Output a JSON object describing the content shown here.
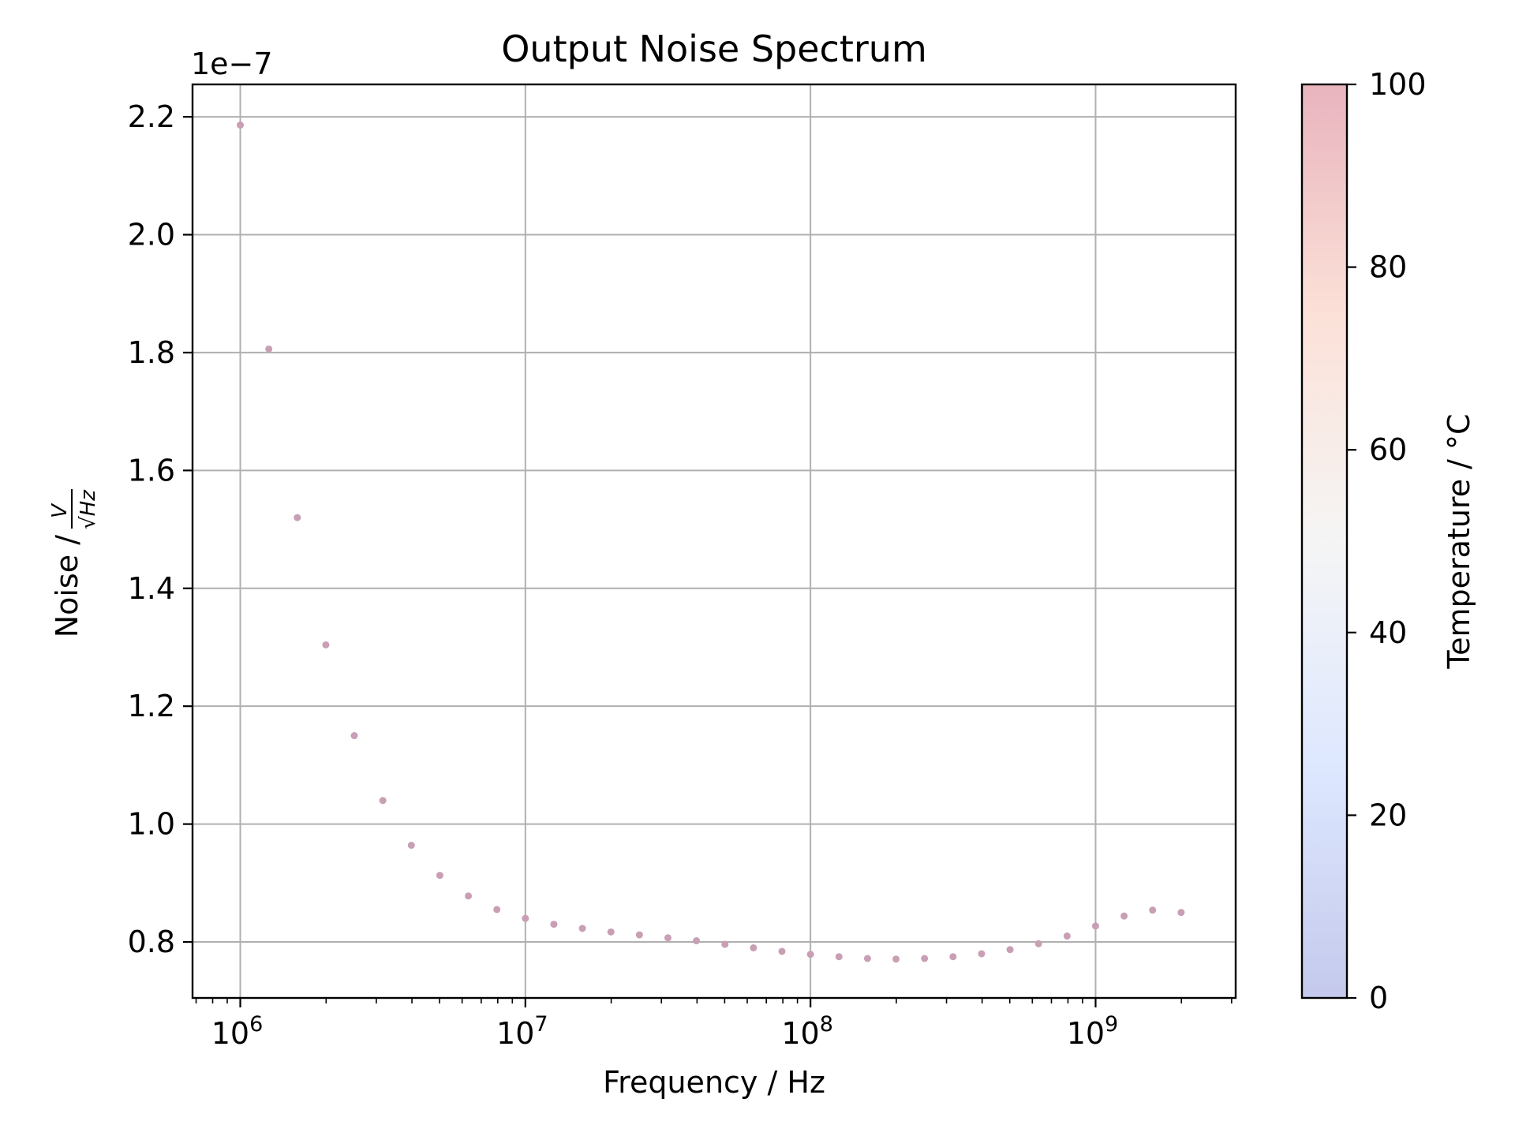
{
  "chart_data": {
    "type": "scatter",
    "title": "Output Noise Spectrum",
    "xlabel": "Frequency / Hz",
    "ylabel_prefix": "Noise /",
    "ylabel_num": "V",
    "ylabel_den": "√Hz",
    "y_offset_label": "1e−7",
    "x_scale": "log",
    "xlim": [
      680000,
      3100000000
    ],
    "ylim": [
      7.05e-08,
      2.255e-07
    ],
    "grid": true,
    "x_ticks": [
      {
        "value": 1000000,
        "base": "10",
        "exp": "6"
      },
      {
        "value": 10000000,
        "base": "10",
        "exp": "7"
      },
      {
        "value": 100000000,
        "base": "10",
        "exp": "8"
      },
      {
        "value": 1000000000,
        "base": "10",
        "exp": "9"
      }
    ],
    "y_ticks": [
      {
        "value": 8e-08,
        "label": "0.8"
      },
      {
        "value": 1e-07,
        "label": "1.0"
      },
      {
        "value": 1.2e-07,
        "label": "1.2"
      },
      {
        "value": 1.4e-07,
        "label": "1.4"
      },
      {
        "value": 1.6e-07,
        "label": "1.6"
      },
      {
        "value": 1.8e-07,
        "label": "1.8"
      },
      {
        "value": 2e-07,
        "label": "2.0"
      },
      {
        "value": 2.2e-07,
        "label": "2.2"
      }
    ],
    "marker_color": "#c89fb4",
    "points": [
      {
        "x": 1000000,
        "y": 2.186e-07
      },
      {
        "x": 1258925,
        "y": 1.806e-07
      },
      {
        "x": 1584893,
        "y": 1.52e-07
      },
      {
        "x": 1995262,
        "y": 1.304e-07
      },
      {
        "x": 2511886,
        "y": 1.15e-07
      },
      {
        "x": 3162278,
        "y": 1.04e-07
      },
      {
        "x": 3981072,
        "y": 9.64e-08
      },
      {
        "x": 5011872,
        "y": 9.13e-08
      },
      {
        "x": 6309573,
        "y": 8.78e-08
      },
      {
        "x": 7943282,
        "y": 8.55e-08
      },
      {
        "x": 10000000,
        "y": 8.4e-08
      },
      {
        "x": 12589254,
        "y": 8.3e-08
      },
      {
        "x": 15848932,
        "y": 8.23e-08
      },
      {
        "x": 19952623,
        "y": 8.17e-08
      },
      {
        "x": 25118864,
        "y": 8.12e-08
      },
      {
        "x": 31622777,
        "y": 8.07e-08
      },
      {
        "x": 39810717,
        "y": 8.02e-08
      },
      {
        "x": 50118723,
        "y": 7.96e-08
      },
      {
        "x": 63095734,
        "y": 7.9e-08
      },
      {
        "x": 79432823,
        "y": 7.84e-08
      },
      {
        "x": 100000000,
        "y": 7.79e-08
      },
      {
        "x": 125892541,
        "y": 7.75e-08
      },
      {
        "x": 158489319,
        "y": 7.72e-08
      },
      {
        "x": 199526231,
        "y": 7.71e-08
      },
      {
        "x": 251188643,
        "y": 7.72e-08
      },
      {
        "x": 316227766,
        "y": 7.75e-08
      },
      {
        "x": 398107171,
        "y": 7.8e-08
      },
      {
        "x": 501187234,
        "y": 7.87e-08
      },
      {
        "x": 630957344,
        "y": 7.97e-08
      },
      {
        "x": 794328235,
        "y": 8.1e-08
      },
      {
        "x": 1000000000,
        "y": 8.27e-08
      },
      {
        "x": 1258925412,
        "y": 8.44e-08
      },
      {
        "x": 1584893192,
        "y": 8.54e-08
      },
      {
        "x": 1995262315,
        "y": 8.5e-08
      }
    ],
    "colorbar": {
      "label": "Temperature / °C",
      "range": [
        0,
        100
      ],
      "ticks": [
        "0",
        "20",
        "40",
        "60",
        "80",
        "100"
      ],
      "colormap": "coolwarm",
      "alpha": 0.3
    }
  }
}
